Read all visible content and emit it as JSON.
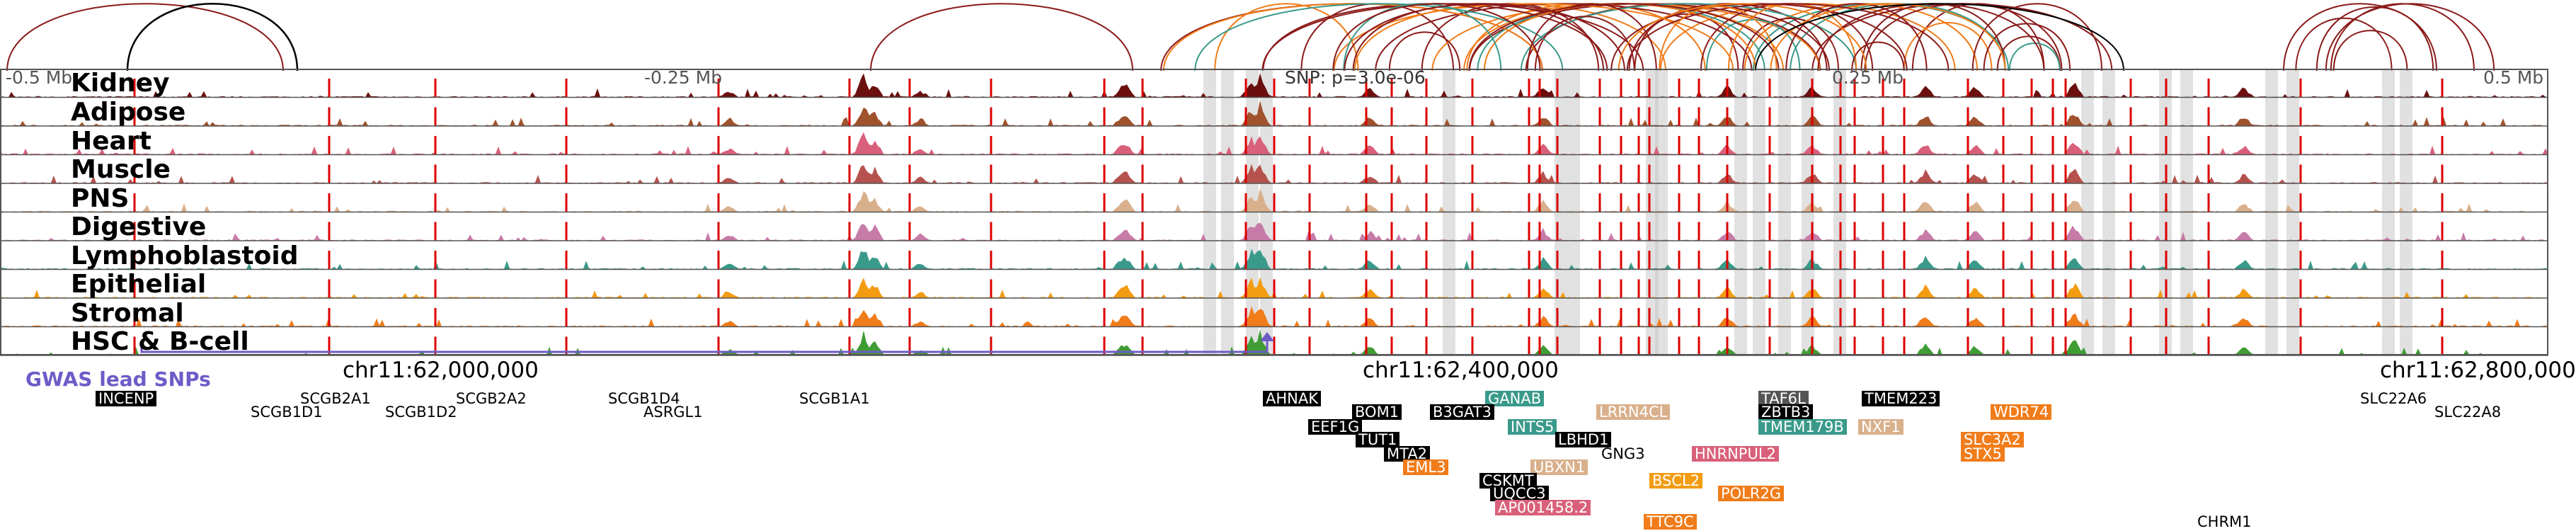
{
  "colors": {
    "track_border": "#555555",
    "vline_red": "#dd0000",
    "shade": "#c8c8c8",
    "gwas": "#6f5bc7",
    "arc_dark": "#8b1a1a",
    "arc_orange": "#f07c1a",
    "arc_teal": "#3a9a8a",
    "arc_black": "#000000"
  },
  "axis": {
    "ticks": [
      "-0.5 Mb",
      "-0.25 Mb",
      "0.25 Mb",
      "0.5 Mb"
    ],
    "snp_label": "SNP: p=3.0e-06"
  },
  "tracks": [
    {
      "name": "Kidney",
      "color": "#6b0f0f"
    },
    {
      "name": "Adipose",
      "color": "#a0522d"
    },
    {
      "name": "Heart",
      "color": "#d9607a"
    },
    {
      "name": "Muscle",
      "color": "#b5524e"
    },
    {
      "name": "PNS",
      "color": "#d9b08c"
    },
    {
      "name": "Digestive",
      "color": "#c77ba8"
    },
    {
      "name": "Lymphoblastoid",
      "color": "#3a9a8a"
    },
    {
      "name": "Epithelial",
      "color": "#f39c12"
    },
    {
      "name": "Stromal",
      "color": "#f07c1a"
    },
    {
      "name": "HSC & B-cell",
      "color": "#3f9c35"
    }
  ],
  "coords": [
    "chr11:62,000,000",
    "chr11:62,400,000",
    "chr11:62,800,000"
  ],
  "gwas_label": "GWAS lead SNPs",
  "genes": [
    {
      "name": "INCENP",
      "style": "box",
      "color": "#000000"
    },
    {
      "name": "SCGB2A1",
      "style": "plain"
    },
    {
      "name": "SCGB1D1",
      "style": "plain"
    },
    {
      "name": "SCGB1D2",
      "style": "plain"
    },
    {
      "name": "SCGB2A2",
      "style": "plain"
    },
    {
      "name": "SCGB1D4",
      "style": "plain"
    },
    {
      "name": "ASRGL1",
      "style": "plain"
    },
    {
      "name": "SCGB1A1",
      "style": "plain"
    },
    {
      "name": "AHNAK",
      "style": "box",
      "color": "#000000"
    },
    {
      "name": "BOM1",
      "style": "box",
      "color": "#000000"
    },
    {
      "name": "GANAB",
      "style": "box",
      "color": "#3a9a8a"
    },
    {
      "name": "B3GAT3",
      "style": "box",
      "color": "#000000"
    },
    {
      "name": "EEF1G",
      "style": "box",
      "color": "#000000"
    },
    {
      "name": "INTS5",
      "style": "box",
      "color": "#3a9a8a"
    },
    {
      "name": "TUT1",
      "style": "box",
      "color": "#000000"
    },
    {
      "name": "MTA2",
      "style": "box",
      "color": "#000000"
    },
    {
      "name": "EML3",
      "style": "box",
      "color": "#f07c1a"
    },
    {
      "name": "LRRN4CL",
      "style": "box",
      "color": "#d9b08c"
    },
    {
      "name": "LBHD1",
      "style": "box",
      "color": "#000000"
    },
    {
      "name": "GNG3",
      "style": "plain"
    },
    {
      "name": "UBXN1",
      "style": "box",
      "color": "#d9b08c"
    },
    {
      "name": "HNRNPUL2",
      "style": "box",
      "color": "#d9607a"
    },
    {
      "name": "CSKMT",
      "style": "box",
      "color": "#000000"
    },
    {
      "name": "UQCC3",
      "style": "box",
      "color": "#000000"
    },
    {
      "name": "BSCL2",
      "style": "box",
      "color": "#f39c12"
    },
    {
      "name": "POLR2G",
      "style": "box",
      "color": "#f07c1a"
    },
    {
      "name": "AP001458.2",
      "style": "box",
      "color": "#d9607a"
    },
    {
      "name": "TTC9C",
      "style": "box",
      "color": "#f07c1a"
    },
    {
      "name": "TAF6L",
      "style": "box",
      "color": "#555555"
    },
    {
      "name": "TMEM223",
      "style": "box",
      "color": "#000000"
    },
    {
      "name": "ZBTB3",
      "style": "box",
      "color": "#000000"
    },
    {
      "name": "TMEM179B",
      "style": "box",
      "color": "#3a9a8a"
    },
    {
      "name": "NXF1",
      "style": "box",
      "color": "#d9b08c"
    },
    {
      "name": "WDR74",
      "style": "box",
      "color": "#f07c1a"
    },
    {
      "name": "SLC3A2",
      "style": "box",
      "color": "#f07c1a"
    },
    {
      "name": "STX5",
      "style": "box",
      "color": "#f07c1a"
    },
    {
      "name": "SLC22A6",
      "style": "plain"
    },
    {
      "name": "SLC22A8",
      "style": "plain"
    },
    {
      "name": "CHRM1",
      "style": "plain"
    }
  ]
}
